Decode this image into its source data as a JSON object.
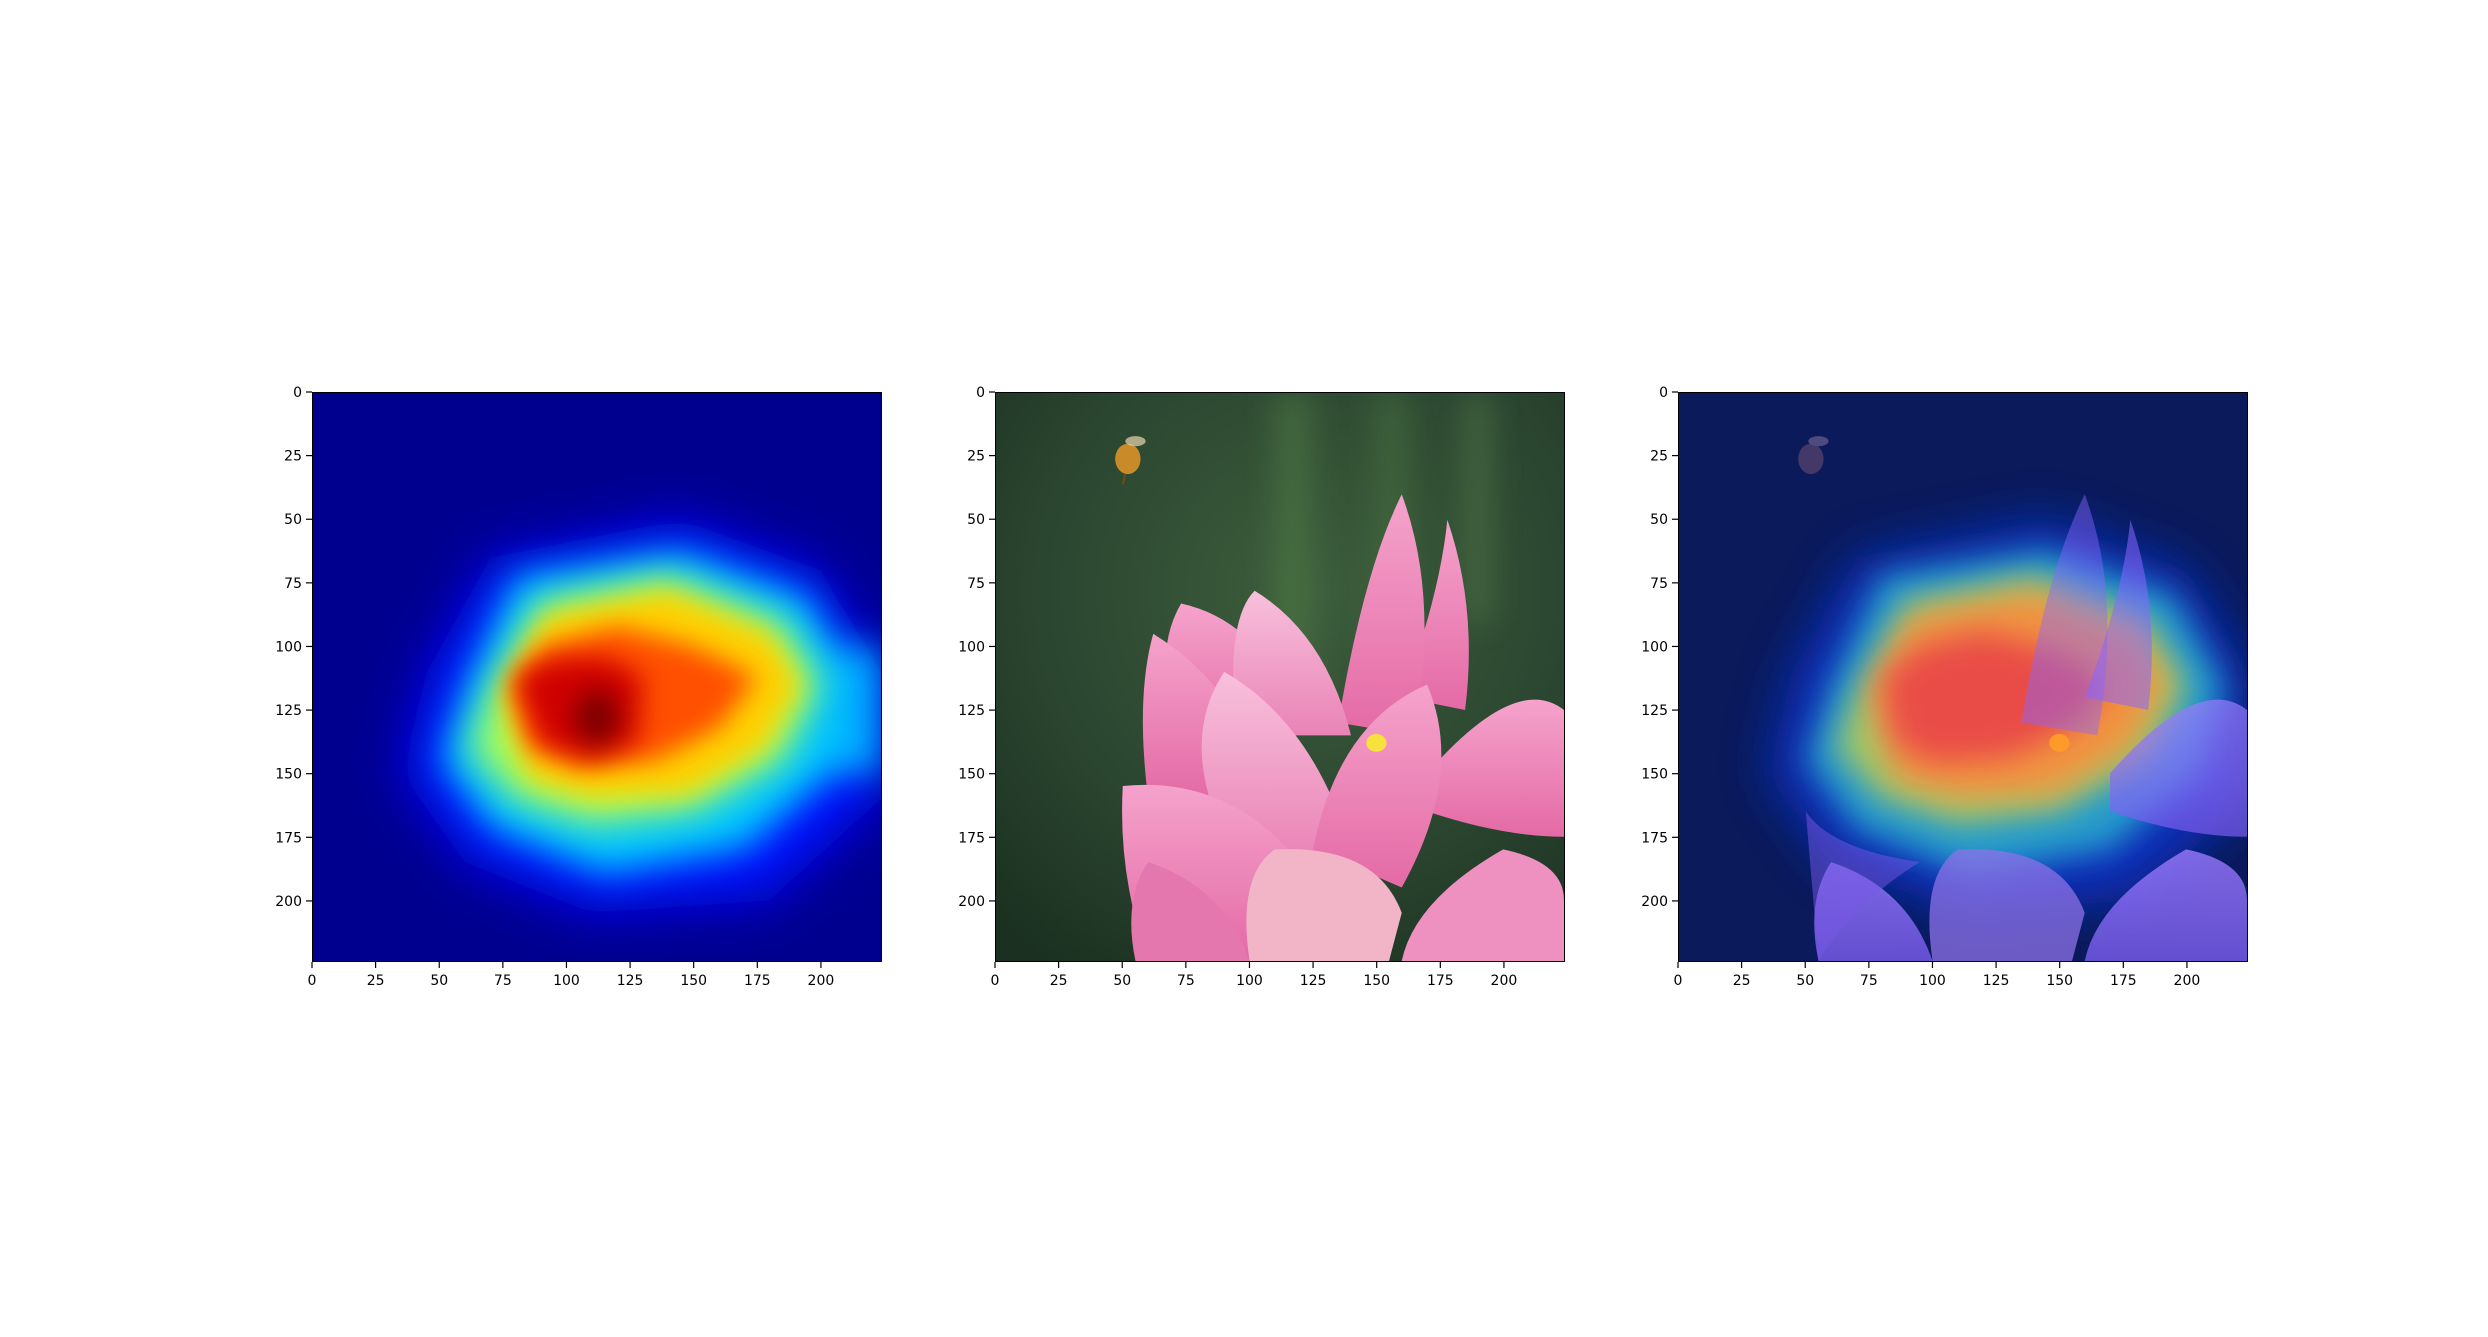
{
  "colors": {
    "jet_low": "#00007f",
    "jet_blue": "#0000ff",
    "jet_cyan": "#00ffff",
    "jet_yellow": "#ffff00",
    "jet_red": "#ff0000",
    "jet_dark_red": "#7f0000",
    "lotus_pink": "#f28bbb",
    "background_green": "#2e4a33"
  },
  "chart_data": [
    {
      "type": "heatmap",
      "panel": "heatmap",
      "colormap": "jet",
      "xlim": [
        0,
        224
      ],
      "ylim": [
        224,
        0
      ],
      "x_ticks": [
        "0",
        "25",
        "50",
        "75",
        "100",
        "125",
        "150",
        "175",
        "200"
      ],
      "y_ticks": [
        "0",
        "25",
        "50",
        "75",
        "100",
        "125",
        "150",
        "175",
        "200"
      ],
      "peak": {
        "x": 112,
        "y": 125
      },
      "grid": false
    },
    {
      "type": "image",
      "panel": "original",
      "xlim": [
        0,
        224
      ],
      "ylim": [
        224,
        0
      ],
      "x_ticks": [
        "0",
        "25",
        "50",
        "75",
        "100",
        "125",
        "150",
        "175",
        "200"
      ],
      "y_ticks": [
        "0",
        "25",
        "50",
        "75",
        "100",
        "125",
        "150",
        "175",
        "200"
      ],
      "grid": false
    },
    {
      "type": "image",
      "panel": "overlay",
      "xlim": [
        0,
        224
      ],
      "ylim": [
        224,
        0
      ],
      "x_ticks": [
        "0",
        "25",
        "50",
        "75",
        "100",
        "125",
        "150",
        "175",
        "200"
      ],
      "y_ticks": [
        "0",
        "25",
        "50",
        "75",
        "100",
        "125",
        "150",
        "175",
        "200"
      ],
      "grid": false
    }
  ]
}
